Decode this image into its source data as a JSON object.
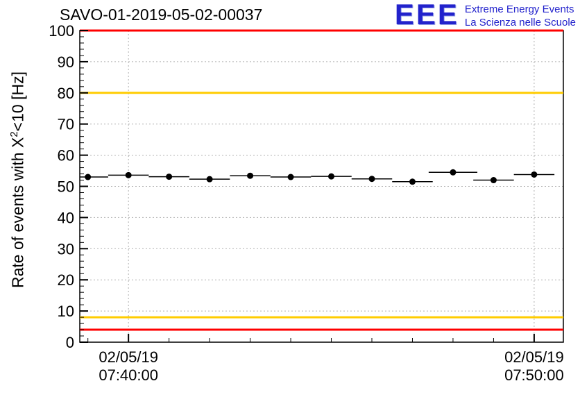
{
  "header": {
    "title": "SAVO-01-2019-05-02-00037"
  },
  "logo": {
    "acronym": "EEE",
    "line1": "Extreme Energy Events",
    "line2": "La Scienza nelle Scuole",
    "color": "#2222cc"
  },
  "chart_data": {
    "type": "scatter",
    "title": "SAVO-01-2019-05-02-00037",
    "ylabel": "Rate of events with X^2<10 [Hz]",
    "ylabel_parts": {
      "prefix": "Rate of events with X",
      "sup": "2",
      "suffix": "<10 [Hz]"
    },
    "ylim": [
      0,
      100
    ],
    "y_major_ticks": [
      0,
      10,
      20,
      30,
      40,
      50,
      60,
      70,
      80,
      90,
      100
    ],
    "y_minor_tick_step": 2,
    "x_axis": {
      "range_minutes": [
        38.8,
        50.72
      ],
      "minor_tick_step_minutes": 1,
      "major_ticks": [
        {
          "minute": 40,
          "label_date": "02/05/19",
          "label_time": "07:40:00"
        },
        {
          "minute": 50,
          "label_date": "02/05/19",
          "label_time": "07:50:00"
        }
      ]
    },
    "grid": true,
    "legend": "none",
    "colors": {
      "axis": "#000000",
      "grid": "#b0b0b0",
      "marker": "#000000",
      "alarm": "#ff0000",
      "warning": "#ffcc00"
    },
    "threshold_lines": [
      {
        "y": 100,
        "level": "alarm-high",
        "color": "#ff0000"
      },
      {
        "y": 80,
        "level": "warning-high",
        "color": "#ffcc00"
      },
      {
        "y": 8,
        "level": "warning-low",
        "color": "#ffcc00"
      },
      {
        "y": 4,
        "level": "alarm-low",
        "color": "#ff0000"
      }
    ],
    "series": [
      {
        "name": "rate",
        "marker": "filled-circle",
        "points": [
          {
            "t_min": 39,
            "y": 53.0,
            "xerr": 0.5,
            "yerr": 0.5
          },
          {
            "t_min": 40,
            "y": 53.6,
            "xerr": 0.5,
            "yerr": 0.5
          },
          {
            "t_min": 41,
            "y": 53.1,
            "xerr": 0.5,
            "yerr": 0.5
          },
          {
            "t_min": 42,
            "y": 52.3,
            "xerr": 0.5,
            "yerr": 0.5
          },
          {
            "t_min": 43,
            "y": 53.4,
            "xerr": 0.5,
            "yerr": 0.5
          },
          {
            "t_min": 44,
            "y": 53.0,
            "xerr": 0.5,
            "yerr": 0.5
          },
          {
            "t_min": 45,
            "y": 53.2,
            "xerr": 0.5,
            "yerr": 0.5
          },
          {
            "t_min": 46,
            "y": 52.4,
            "xerr": 0.5,
            "yerr": 0.5
          },
          {
            "t_min": 47,
            "y": 51.5,
            "xerr": 0.5,
            "yerr": 0.5
          },
          {
            "t_min": 48,
            "y": 54.5,
            "xerr": 0.6,
            "yerr": 0.5
          },
          {
            "t_min": 49,
            "y": 52.0,
            "xerr": 0.5,
            "yerr": 0.5
          },
          {
            "t_min": 50,
            "y": 53.8,
            "xerr": 0.5,
            "yerr": 0.5
          }
        ]
      }
    ]
  }
}
